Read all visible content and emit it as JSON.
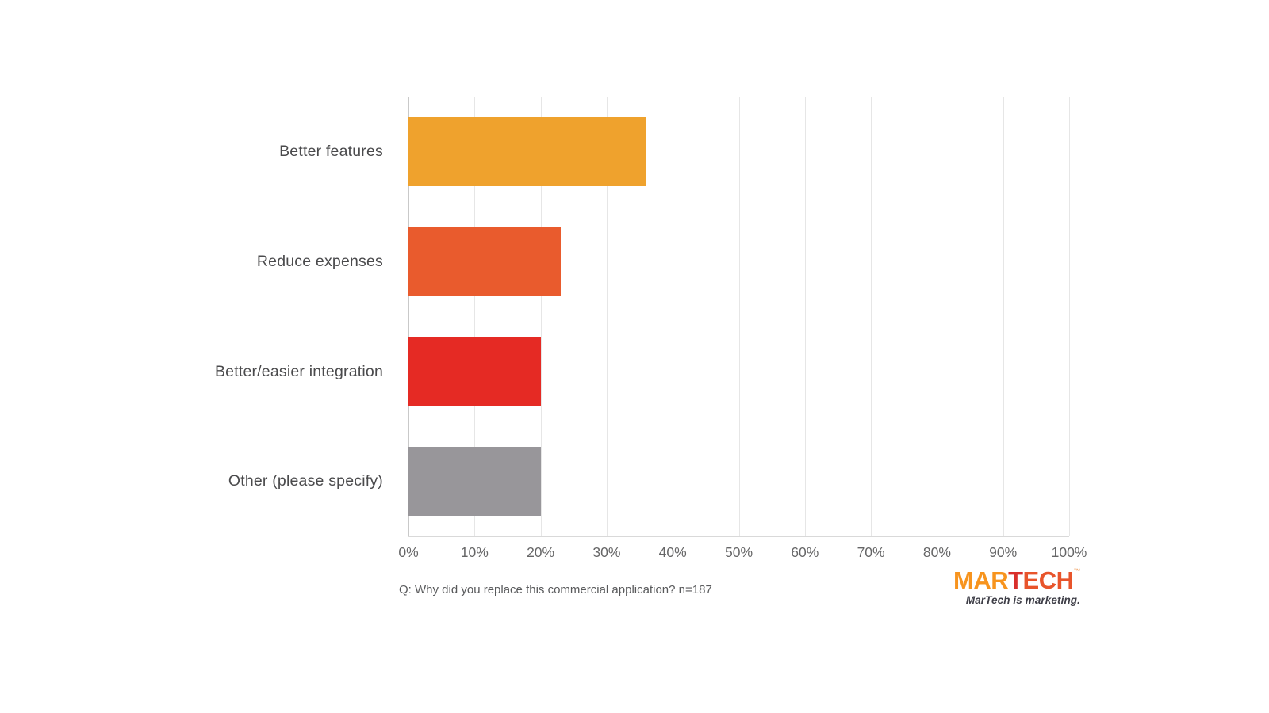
{
  "chart_data": {
    "type": "bar",
    "orientation": "horizontal",
    "categories": [
      "Better features",
      "Reduce expenses",
      "Better/easier integration",
      "Other (please specify)"
    ],
    "values": [
      36,
      23,
      20,
      20
    ],
    "bar_colors": [
      "#efa22d",
      "#e95b2d",
      "#e52a24",
      "#98969a"
    ],
    "xlim": [
      0,
      100
    ],
    "x_tick_values": [
      0,
      10,
      20,
      30,
      40,
      50,
      60,
      70,
      80,
      90,
      100
    ],
    "x_tick_labels": [
      "0%",
      "10%",
      "20%",
      "30%",
      "40%",
      "50%",
      "60%",
      "70%",
      "80%",
      "90%",
      "100%"
    ],
    "grid": "vertical",
    "legend": "none",
    "title": "",
    "caption": "Q: Why did you replace this commercial application? n=187"
  },
  "footer": {
    "logo": {
      "part_mar": "MAR",
      "part_t": "T",
      "part_ech": "ECH",
      "trademark": "™",
      "tagline": "MarTech is marketing.",
      "color_mar": "#f7941e",
      "color_t": "#d92f2b",
      "color_ech": "#e8542b"
    }
  }
}
